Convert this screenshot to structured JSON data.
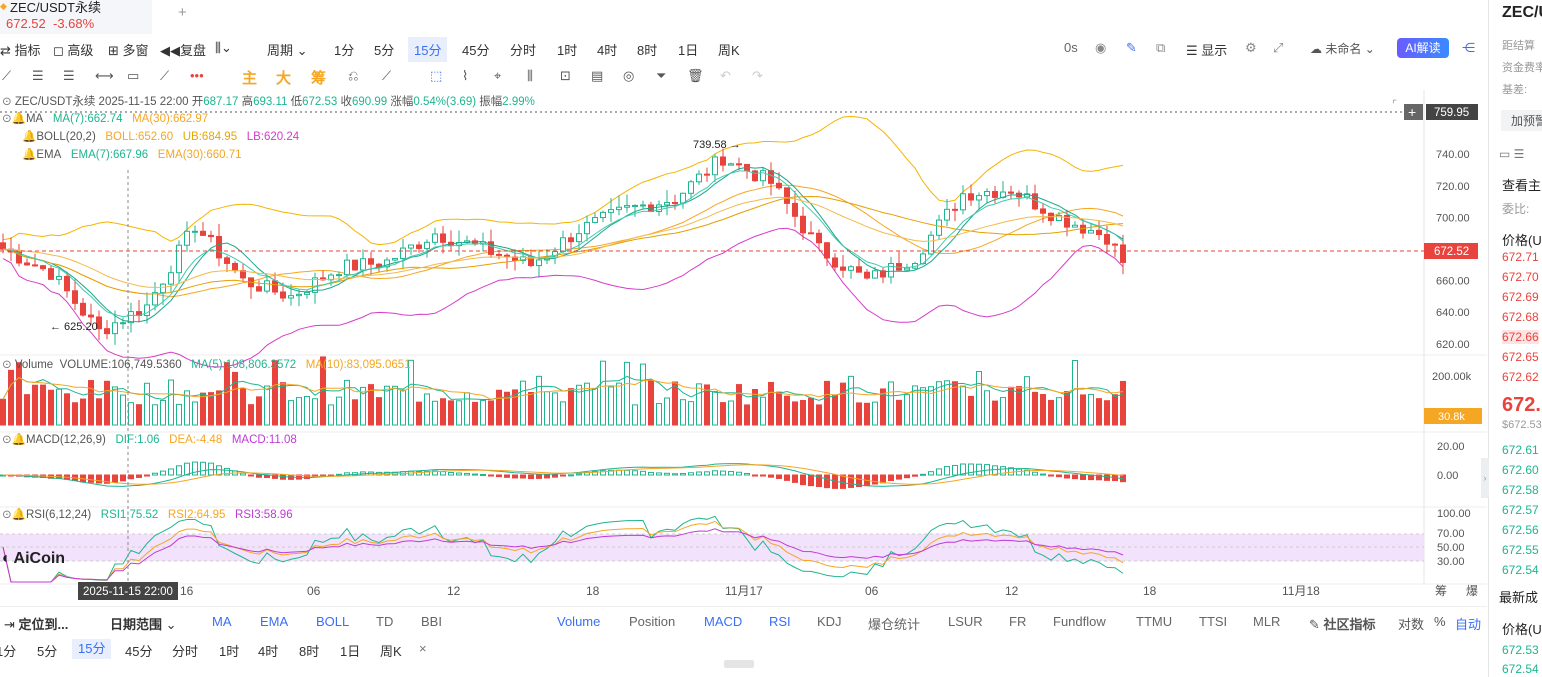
{
  "tab": {
    "symbol": "ZEC/USDT永续",
    "price": "672.52",
    "change": "-3.68%"
  },
  "toolbar1": {
    "indicator": "指标",
    "advanced": "高级",
    "multi": "多窗",
    "replay": "复盘",
    "period": "周期",
    "timeframes": [
      "1分",
      "5分",
      "15分",
      "45分",
      "分时",
      "1时",
      "4时",
      "8时",
      "1日",
      "周K"
    ],
    "active_tf": "15分",
    "countdown": "0s",
    "display": "显示",
    "unnamed": "未命名",
    "ai": "AI解读"
  },
  "toolbar2": {
    "chars": [
      "主",
      "大",
      "筹"
    ]
  },
  "legend": {
    "line1": {
      "name": "ZEC/USDT永续",
      "time": "2025-11-15 22:00",
      "open_l": "开",
      "open": "687.17",
      "high_l": "高",
      "high": "693.11",
      "low_l": "低",
      "low": "672.53",
      "close_l": "收",
      "close": "690.99",
      "chg_l": "涨幅",
      "chg": "0.54%(3.69)",
      "amp_l": "振幅",
      "amp": "2.99%"
    },
    "ma": {
      "name": "MA",
      "ma7": "MA(7):662.74",
      "ma30": "MA(30):662.97"
    },
    "boll": {
      "name": "BOLL(20,2)",
      "boll": "BOLL:652.60",
      "ub": "UB:684.95",
      "lb": "LB:620.24"
    },
    "ema": {
      "name": "EMA",
      "ema7": "EMA(7):667.96",
      "ema30": "EMA(30):660.71"
    },
    "vol": {
      "name": "Volume",
      "v": "VOLUME:106,749.5360",
      "ma5": "MA(5):108,806.3572",
      "ma10": "MA(10):83,095.0651"
    },
    "macd": {
      "name": "MACD(12,26,9)",
      "dif": "DIF:1.06",
      "dea": "DEA:-4.48",
      "macd": "MACD:11.08"
    },
    "rsi": {
      "name": "RSI(6,12,24)",
      "r1": "RSI1:75.52",
      "r2": "RSI2:64.95",
      "r3": "RSI3:58.96"
    }
  },
  "price_axis": [
    "740.00",
    "720.00",
    "700.00",
    "680.00",
    "660.00",
    "640.00",
    "620.00"
  ],
  "price_hl": {
    "high": "739.58",
    "low": "625.20",
    "top_marker": "759.95",
    "last": "672.52"
  },
  "vol_axis": {
    "top": "200.00k",
    "last": "30.8k"
  },
  "macd_axis": [
    "20.00",
    "0.00"
  ],
  "rsi_axis": [
    "100.00",
    "70.00",
    "50.00",
    "30.00"
  ],
  "time_axis": {
    "labels": [
      "16",
      "06",
      "12",
      "18",
      "11月17",
      "06",
      "12",
      "18",
      "11月18"
    ],
    "crosshair": "2025-11-15 22:00",
    "right": [
      "筹",
      "爆"
    ]
  },
  "logo": "AiCoin",
  "bottom1": {
    "locate": "定位到...",
    "date_range": "日期范围",
    "indicators": [
      "MA",
      "EMA",
      "BOLL",
      "TD",
      "BBI"
    ],
    "sub_indicators": [
      "Volume",
      "Position",
      "MACD",
      "RSI",
      "KDJ",
      "爆仓统计",
      "LSUR",
      "FR",
      "Fundflow",
      "TTMU",
      "TTSI",
      "MLR"
    ],
    "community": "社区指标",
    "log": "对数",
    "pct": "%",
    "auto": "自动"
  },
  "bottom2": {
    "timeframes": [
      "1分",
      "5分",
      "15分",
      "45分",
      "分时",
      "1时",
      "4时",
      "8时",
      "1日",
      "周K"
    ],
    "active": "15分",
    "close": "×"
  },
  "right_panel": {
    "title": "ZEC/U",
    "distance": "距结算",
    "funding": "资金费率",
    "basis": "基差:",
    "add_alert": "加预警",
    "view": "查看主",
    "commit_ratio": "委比:",
    "price_h": "价格(U",
    "asks": [
      "672.71",
      "672.70",
      "672.69",
      "672.68",
      "672.66",
      "672.65",
      "672.62"
    ],
    "last": "672.",
    "last_sub": "$672.53",
    "bids": [
      "672.61",
      "672.60",
      "672.58",
      "672.57",
      "672.56",
      "672.55",
      "672.54"
    ],
    "latest": "最新成",
    "price_h2": "价格(U",
    "trades": [
      "672.53",
      "672.54"
    ]
  },
  "colors": {
    "up": "#1fb58f",
    "down": "#e8433d",
    "accent": "#3a6ff7",
    "ma7": "#1fb58f",
    "ma30": "#f5a623",
    "boll_mid": "#f5a623",
    "boll_ub": "#f5b400",
    "boll_lb": "#d63cc8",
    "ema7": "#1fb58f",
    "ema30": "#f5a623"
  }
}
